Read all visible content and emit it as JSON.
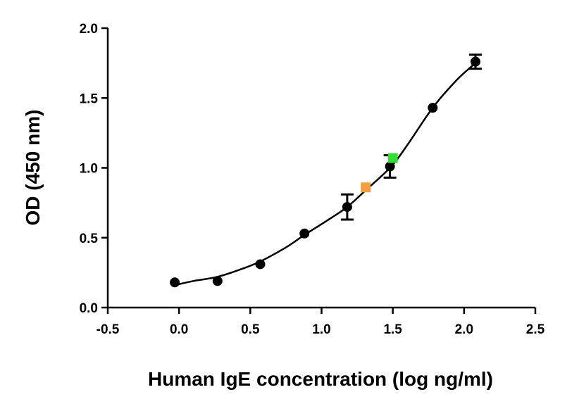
{
  "chart_data": {
    "type": "scatter",
    "title": "",
    "xlabel": "Human IgE concentration (log ng/ml)",
    "ylabel": "OD (450 nm)",
    "xlim": [
      -0.5,
      2.5
    ],
    "ylim": [
      0.0,
      2.0
    ],
    "xticks": [
      "-0.5",
      "0.0",
      "0.5",
      "1.0",
      "1.5",
      "2.0",
      "2.5"
    ],
    "yticks": [
      "0.0",
      "0.5",
      "1.0",
      "1.5",
      "2.0"
    ],
    "grid": false,
    "legend": "none",
    "series": [
      {
        "marker": "circle",
        "color": "#000000",
        "x": [
          -0.03,
          0.27,
          0.57,
          0.88,
          1.18,
          1.48,
          1.78,
          2.08
        ],
        "y": [
          0.18,
          0.19,
          0.31,
          0.53,
          0.72,
          1.01,
          1.43,
          1.76
        ],
        "error": [
          0,
          0,
          0,
          0,
          0.09,
          0.08,
          0,
          0.05
        ]
      },
      {
        "marker": "square",
        "color": "#f0a040",
        "x": [
          1.31
        ],
        "y": [
          0.86
        ],
        "error": [
          0
        ]
      },
      {
        "marker": "square",
        "color": "#33dd33",
        "x": [
          1.5
        ],
        "y": [
          1.07
        ],
        "error": [
          0
        ]
      }
    ],
    "fit_curve": {
      "color": "#000000",
      "x": [
        -0.03,
        0.1,
        0.27,
        0.45,
        0.57,
        0.75,
        0.88,
        1.05,
        1.18,
        1.31,
        1.48,
        1.6,
        1.78,
        1.95,
        2.08
      ],
      "y": [
        0.16,
        0.19,
        0.22,
        0.28,
        0.33,
        0.43,
        0.52,
        0.63,
        0.72,
        0.84,
        1.0,
        1.16,
        1.43,
        1.63,
        1.75
      ]
    }
  }
}
